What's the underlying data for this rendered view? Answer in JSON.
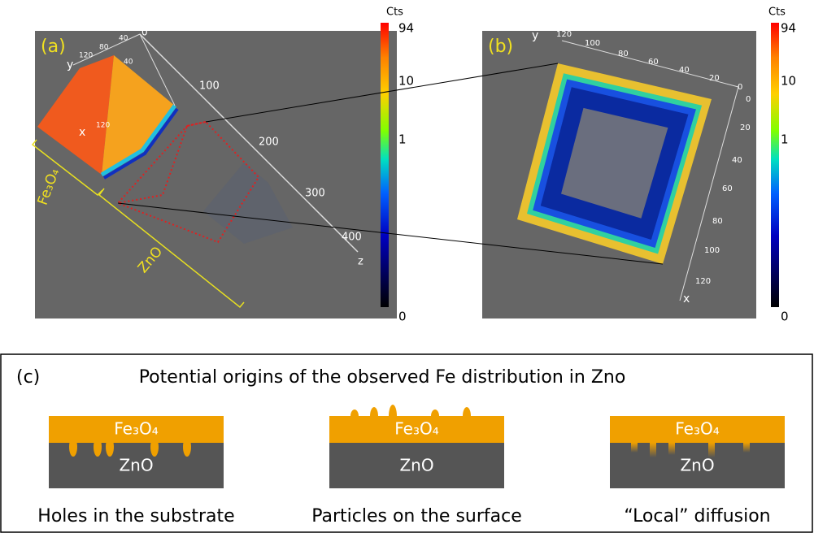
{
  "panels": [
    {
      "label": "(a)",
      "colorbar": {
        "title": "Cts",
        "labels": [
          "94",
          "10",
          "1",
          "0"
        ]
      },
      "axis_labels": [
        "0",
        "100",
        "200",
        "300",
        "400",
        "z",
        "y",
        "x",
        "120",
        "80",
        "40",
        "40",
        "120"
      ],
      "layer_labels": [
        "Fe₃O₄",
        "ZnO"
      ]
    },
    {
      "label": "(b)",
      "colorbar": {
        "title": "Cts",
        "labels": [
          "94",
          "10",
          "1",
          "0"
        ]
      },
      "axis_labels": [
        "y",
        "120",
        "100",
        "80",
        "60",
        "40",
        "20",
        "0",
        "0",
        "20",
        "40",
        "60",
        "80",
        "100",
        "120",
        "x"
      ]
    }
  ],
  "panel_c": {
    "label": "(c)",
    "title": "Potential origins of the observed Fe distribution in Zno",
    "diagrams": [
      {
        "top": "Fe₃O₄",
        "bottom": "ZnO",
        "caption": "Holes in the substrate"
      },
      {
        "top": "Fe₃O₄",
        "bottom": "ZnO",
        "caption": "Particles on the surface"
      },
      {
        "top": "Fe₃O₄",
        "bottom": "ZnO",
        "caption": "“Local” diffusion"
      }
    ]
  }
}
